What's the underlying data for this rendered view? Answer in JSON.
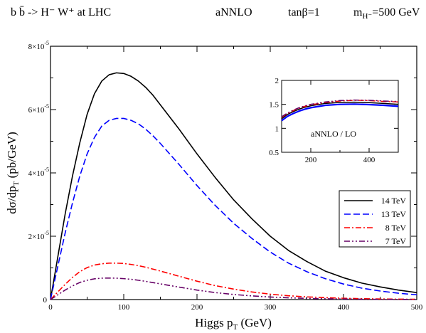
{
  "chart_data": [
    {
      "type": "line",
      "title": "b b̄ -> H⁻ W⁺  at LHC      aNNLO      tanβ=1      m_H⁻=500 GeV",
      "title_parts": {
        "process": "b b̄ -> H⁻ W⁺  at LHC",
        "order": "aNNLO",
        "tanbeta": "tanβ=1",
        "mass_prefix": "m",
        "mass_sub": "H⁻",
        "mass_value": "=500 GeV"
      },
      "xlabel": "Higgs  p",
      "xlabel_sub": "T",
      "xlabel_suffix": " (GeV)",
      "ylabel": "dσ/dp",
      "ylabel_sub": "T",
      "ylabel_suffix": " (pb/GeV)",
      "xlim": [
        0,
        500
      ],
      "ylim": [
        0,
        8e-05
      ],
      "grid": false,
      "legend_position": "right",
      "x_ticks": [
        0,
        100,
        200,
        300,
        400,
        500
      ],
      "x_tick_labels": [
        "0",
        "100",
        "200",
        "300",
        "400",
        "500"
      ],
      "y_ticks": [
        0,
        2e-05,
        4e-05,
        6e-05,
        8e-05
      ],
      "y_tick_labels": [
        {
          "base": "0",
          "exp": ""
        },
        {
          "base": "2×10",
          "exp": "-5"
        },
        {
          "base": "4×10",
          "exp": "-5"
        },
        {
          "base": "6×10",
          "exp": "-5"
        },
        {
          "base": "8×10",
          "exp": "-5"
        }
      ],
      "x": [
        0,
        10,
        20,
        30,
        40,
        50,
        60,
        70,
        80,
        90,
        100,
        110,
        120,
        130,
        140,
        150,
        175,
        200,
        225,
        250,
        275,
        300,
        325,
        350,
        375,
        400,
        425,
        450,
        475,
        500
      ],
      "series": [
        {
          "name": "14 TeV",
          "color": "#000000",
          "dash": "solid",
          "values": [
            0,
            1.35e-05,
            2.7e-05,
            3.9e-05,
            4.95e-05,
            5.85e-05,
            6.5e-05,
            6.9e-05,
            7.1e-05,
            7.16e-05,
            7.14e-05,
            7.05e-05,
            6.9e-05,
            6.7e-05,
            6.45e-05,
            6.15e-05,
            5.4e-05,
            4.6e-05,
            3.85e-05,
            3.15e-05,
            2.55e-05,
            2e-05,
            1.55e-05,
            1.2e-05,
            9e-06,
            6.9e-06,
            5.2e-06,
            4e-06,
            3e-06,
            2.2e-06
          ]
        },
        {
          "name": "13 TeV",
          "color": "#0000ff",
          "dash": "dash",
          "values": [
            0,
            1.05e-05,
            2.1e-05,
            3.05e-05,
            3.9e-05,
            4.6e-05,
            5.12e-05,
            5.48e-05,
            5.66e-05,
            5.72e-05,
            5.72e-05,
            5.66e-05,
            5.55e-05,
            5.38e-05,
            5.17e-05,
            4.93e-05,
            4.28e-05,
            3.6e-05,
            2.97e-05,
            2.41e-05,
            1.93e-05,
            1.5e-05,
            1.15e-05,
            8.8e-06,
            6.6e-06,
            4.9e-06,
            3.6e-06,
            2.7e-06,
            2e-06,
            1.5e-06
          ]
        },
        {
          "name": "8 TeV",
          "color": "#ff0000",
          "dash": "dashdot",
          "values": [
            0,
            2.4e-06,
            4.8e-06,
            7e-06,
            8.8e-06,
            1.01e-05,
            1.09e-05,
            1.13e-05,
            1.15e-05,
            1.15e-05,
            1.14e-05,
            1.11e-05,
            1.07e-05,
            1.02e-05,
            9.6e-06,
            9e-06,
            7.4e-06,
            5.8e-06,
            4.4e-06,
            3.3e-06,
            2.4e-06,
            1.7e-06,
            1.2e-06,
            8.5e-07,
            6e-07,
            4e-07,
            2.8e-07,
            1.9e-07,
            1.3e-07,
            9e-08
          ]
        },
        {
          "name": "7 TeV",
          "color": "#660066",
          "dash": "dashdotdot",
          "values": [
            0,
            1.5e-06,
            3e-06,
            4.3e-06,
            5.4e-06,
            6.1e-06,
            6.55e-06,
            6.75e-06,
            6.8e-06,
            6.75e-06,
            6.6e-06,
            6.4e-06,
            6.1e-06,
            5.75e-06,
            5.35e-06,
            4.95e-06,
            3.95e-06,
            3e-06,
            2.2e-06,
            1.6e-06,
            1.15e-06,
            8e-07,
            5.5e-07,
            3.7e-07,
            2.5e-07,
            1.7e-07,
            1.1e-07,
            7e-08,
            5e-08,
            3e-08
          ]
        }
      ]
    },
    {
      "type": "line",
      "title": "",
      "annotation": "aNNLO / LO",
      "xlim": [
        100,
        500
      ],
      "ylim": [
        0.5,
        2
      ],
      "grid": false,
      "x_ticks": [
        200,
        400
      ],
      "x_tick_labels": [
        "200",
        "400"
      ],
      "y_ticks": [
        0.5,
        1,
        1.5,
        2
      ],
      "y_tick_labels": [
        "0.5",
        "1",
        "1.5",
        "2"
      ],
      "x": [
        100,
        120,
        140,
        160,
        180,
        200,
        250,
        300,
        350,
        400,
        450,
        500
      ],
      "series": [
        {
          "name": "14 TeV",
          "color": "#000000",
          "dash": "solid",
          "values": [
            1.2,
            1.29,
            1.35,
            1.4,
            1.44,
            1.47,
            1.52,
            1.54,
            1.545,
            1.535,
            1.52,
            1.5
          ]
        },
        {
          "name": "13 TeV",
          "color": "#0000ff",
          "dash": "solid",
          "values": [
            1.16,
            1.25,
            1.31,
            1.36,
            1.4,
            1.43,
            1.48,
            1.5,
            1.505,
            1.495,
            1.48,
            1.46
          ]
        },
        {
          "name": "8 TeV",
          "color": "#ff0000",
          "dash": "dashdot",
          "values": [
            1.23,
            1.31,
            1.37,
            1.42,
            1.46,
            1.49,
            1.54,
            1.57,
            1.585,
            1.58,
            1.56,
            1.55
          ]
        },
        {
          "name": "7 TeV",
          "color": "#660066",
          "dash": "dashdotdot",
          "values": [
            1.24,
            1.32,
            1.38,
            1.43,
            1.47,
            1.5,
            1.55,
            1.58,
            1.59,
            1.585,
            1.57,
            1.56
          ]
        }
      ]
    }
  ]
}
